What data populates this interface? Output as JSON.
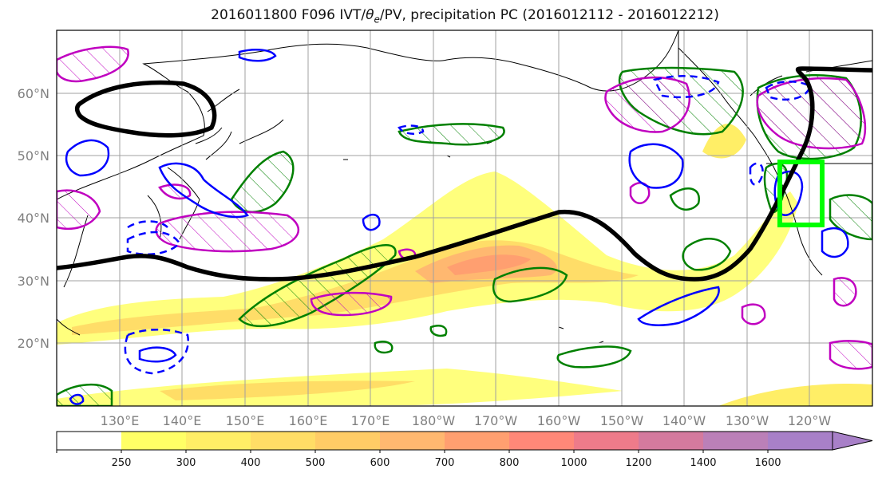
{
  "title": {
    "prefix": "2016011800 F096 IVT/",
    "theta": "θ",
    "theta_sub": "e",
    "suffix": "/PV, precipitation PC (2016012112 - 2016012212)"
  },
  "map": {
    "lat_labels": [
      "60°N",
      "50°N",
      "40°N",
      "30°N",
      "20°N"
    ],
    "lon_labels": [
      "130°E",
      "140°E",
      "150°E",
      "160°E",
      "170°E",
      "180°W",
      "170°W",
      "160°W",
      "150°W",
      "140°W",
      "130°W",
      "120°W"
    ],
    "extent": {
      "lon": [
        120,
        250
      ],
      "lat": [
        10,
        70
      ]
    },
    "highlight_box": {
      "lon": [
        235.5,
        242.5
      ],
      "lat": [
        39,
        49
      ],
      "color": "#00ff00"
    },
    "contour_colors": {
      "ivt_fill": "#ffff66",
      "theta_e": "#000000",
      "pv_positive": "#0000ff",
      "precip_pc": "#008000",
      "pv_magenta": "#c000c0"
    }
  },
  "colorbar": {
    "ticks": [
      "250",
      "300",
      "400",
      "500",
      "600",
      "700",
      "800",
      "1000",
      "1200",
      "1400",
      "1600"
    ],
    "colors": [
      "#ffffff",
      "#ffff66",
      "#ffee66",
      "#ffdd66",
      "#ffcc66",
      "#ffb870",
      "#ff9f70",
      "#ff8878",
      "#ee7b8a",
      "#d47a9e",
      "#bb80b8",
      "#a880c8"
    ]
  }
}
